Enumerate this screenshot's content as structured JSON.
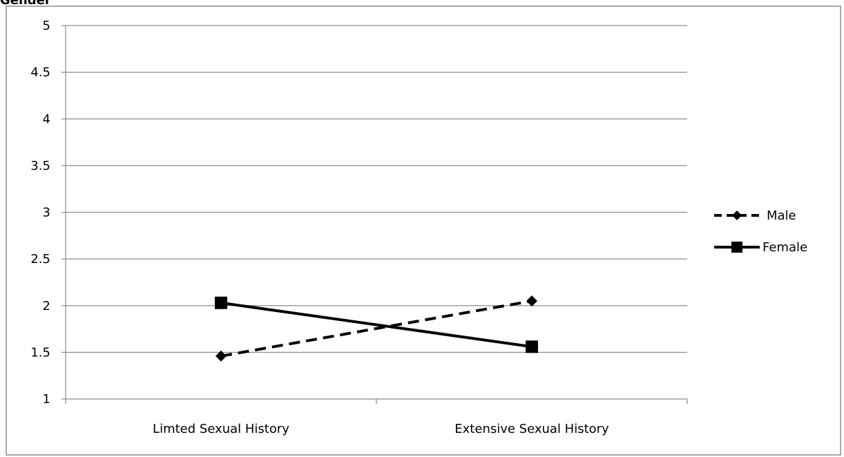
{
  "title": "Gender",
  "chart_data": {
    "type": "line",
    "categories": [
      "Limted Sexual History",
      "Extensive Sexual History"
    ],
    "ylim": [
      1,
      5
    ],
    "yticks": [
      "1",
      "1.5",
      "2",
      "2.5",
      "3",
      "3.5",
      "4",
      "4.5",
      "5"
    ],
    "grid": true,
    "legend_position": "right",
    "series": [
      {
        "name": "Male",
        "values": [
          1.46,
          2.05
        ],
        "line_style": "dashed",
        "marker": "diamond",
        "color": "#000000"
      },
      {
        "name": "Female",
        "values": [
          2.03,
          1.56
        ],
        "line_style": "solid",
        "marker": "square",
        "color": "#000000"
      }
    ]
  }
}
